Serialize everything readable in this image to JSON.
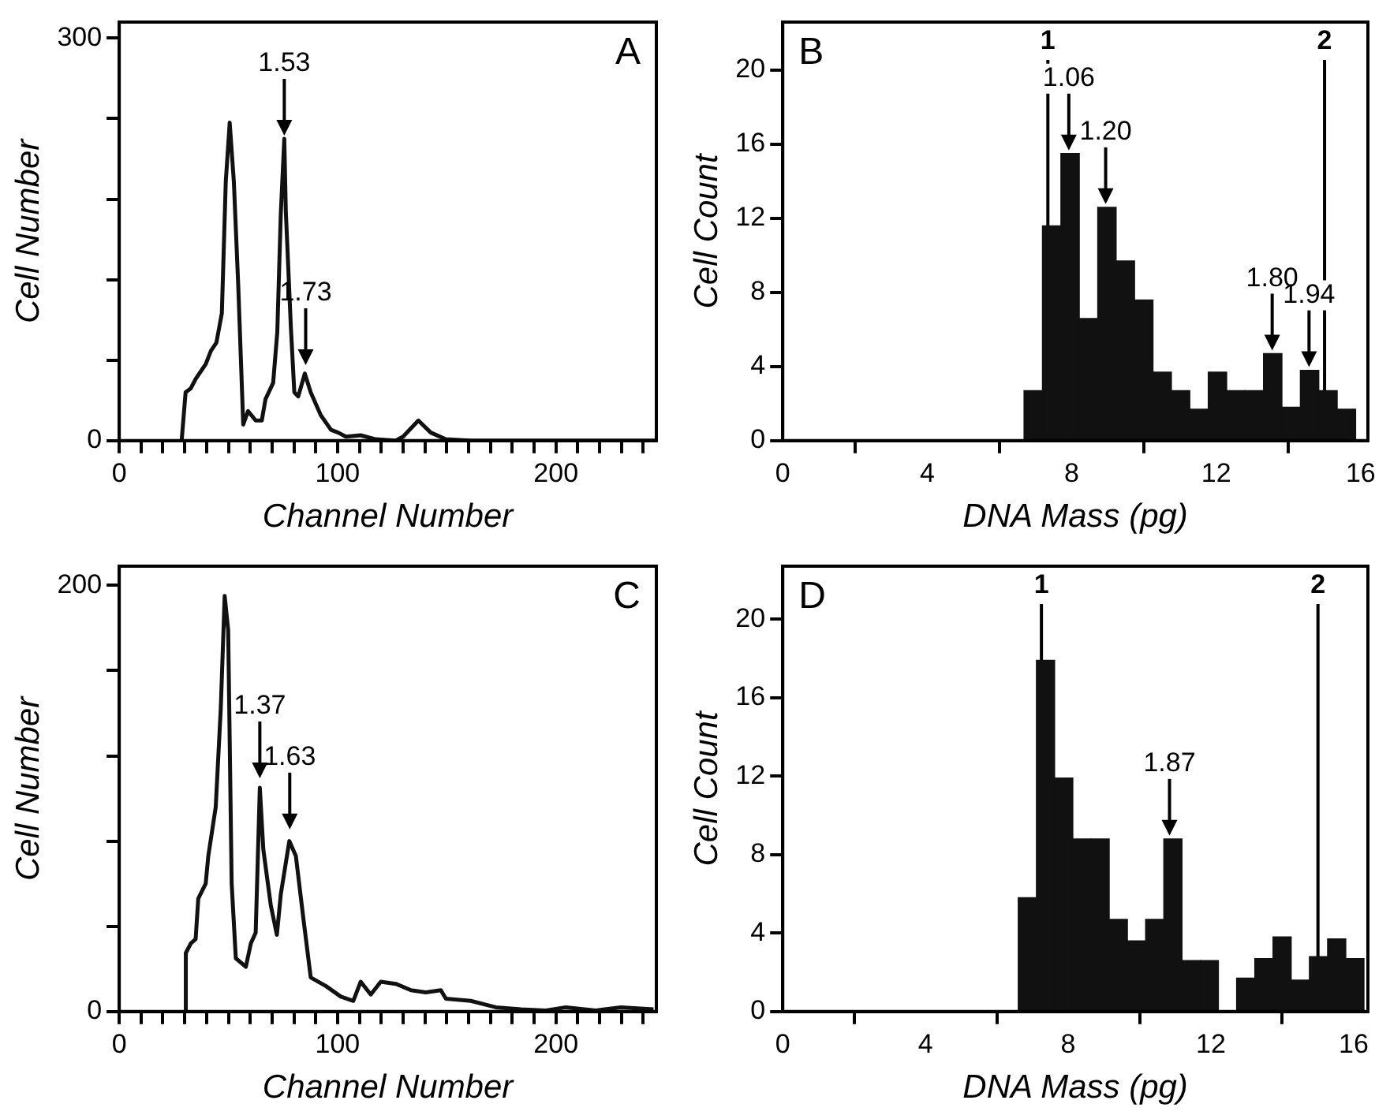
{
  "chart_data": [
    {
      "type": "line",
      "title": "A",
      "xlabel": "Channel Number",
      "ylabel": "Cell Number",
      "color": "#111111",
      "x": [
        28.6,
        30.4,
        32.8,
        35,
        39.6,
        42,
        44.5,
        47,
        48.8,
        50.6,
        52.5,
        54.5,
        56.8,
        59,
        62.5,
        65.3,
        67,
        70.5,
        72.4,
        74,
        75.6,
        76.3,
        78.6,
        80.2,
        82,
        85,
        87.7,
        92.3,
        97,
        100.3,
        103.8,
        110.6,
        117.5,
        126.7,
        130,
        137,
        142.7,
        149.6,
        161,
        200,
        246
      ],
      "values": [
        0,
        36,
        39,
        46,
        57,
        67,
        73,
        95,
        193,
        237,
        193,
        116,
        12,
        22,
        15,
        15,
        31,
        43,
        81,
        169,
        225,
        171,
        85,
        36,
        33,
        50,
        36,
        19,
        8,
        6,
        3,
        4,
        1,
        0,
        3,
        15,
        6,
        1,
        0,
        0,
        0
      ],
      "xlim": [
        0,
        246
      ],
      "ylim": [
        0,
        312
      ],
      "xticks": [
        0,
        {
          "value": 10,
          "label": null
        },
        {
          "value": 20,
          "label": null
        },
        {
          "value": 30,
          "label": null
        },
        {
          "value": 40,
          "label": null
        },
        {
          "value": 50,
          "label": null
        },
        {
          "value": 60,
          "label": null
        },
        {
          "value": 70,
          "label": null
        },
        {
          "value": 80,
          "label": null
        },
        {
          "value": 90,
          "label": null
        },
        100,
        {
          "value": 110,
          "label": null
        },
        {
          "value": 120,
          "label": null
        },
        {
          "value": 130,
          "label": null
        },
        {
          "value": 140,
          "label": null
        },
        {
          "value": 150,
          "label": null
        },
        {
          "value": 160,
          "label": null
        },
        {
          "value": 170,
          "label": null
        },
        {
          "value": 180,
          "label": null
        },
        {
          "value": 190,
          "label": null
        },
        200,
        {
          "value": 210,
          "label": null
        },
        {
          "value": 220,
          "label": null
        },
        {
          "value": 230,
          "label": null
        },
        {
          "value": 240,
          "label": null
        }
      ],
      "yticks": [
        0,
        {
          "value": 60,
          "label": null
        },
        {
          "value": 120,
          "label": null
        },
        {
          "value": 180,
          "label": null
        },
        {
          "value": 240,
          "label": null
        },
        300
      ],
      "annotations": [
        {
          "text": "1.53",
          "x": 75.6,
          "y": 225
        },
        {
          "text": "1.73",
          "x": 85.4,
          "y": 54
        }
      ]
    },
    {
      "type": "histogram",
      "title": "B",
      "xlabel": "DNA Mass (pg)",
      "ylabel": "Cell Count",
      "color": "#111111",
      "bins": [
        6.68,
        7.19,
        7.7,
        8.21,
        8.72,
        9.23,
        9.74,
        10.25,
        10.76,
        11.27,
        11.78,
        12.29,
        12.8,
        13.31,
        13.82,
        14.33,
        14.84,
        15.35,
        15.86
      ],
      "values": [
        2.7,
        11.6,
        15.5,
        6.6,
        12.6,
        9.7,
        7.6,
        3.7,
        2.7,
        1.7,
        3.7,
        2.7,
        2.7,
        4.7,
        1.8,
        3.8,
        2.7,
        1.7
      ],
      "xlim": [
        0,
        16.2
      ],
      "ylim": [
        0,
        22.6
      ],
      "xticks": [
        0,
        4,
        8,
        12,
        16
      ],
      "yticks": [
        0,
        4,
        8,
        12,
        16,
        20
      ],
      "ref_lines": [
        {
          "axis": "x",
          "value": 7.34
        },
        {
          "axis": "x",
          "value": 15.0
        }
      ],
      "annotations": [
        "1",
        "2",
        {
          "text": "1.06",
          "x": 7.92,
          "y": 15.5
        },
        {
          "text": "1.20",
          "x": 8.94,
          "y": 12.6
        },
        {
          "text": "1.80",
          "x": 13.55,
          "y": 4.7
        },
        {
          "text": "1.94",
          "x": 14.57,
          "y": 3.8
        }
      ]
    },
    {
      "type": "line",
      "title": "C",
      "xlabel": "Channel Number",
      "ylabel": "Cell Number",
      "color": "#111111",
      "x": [
        30,
        30.5,
        32.8,
        35,
        36.2,
        39.6,
        40.8,
        44.2,
        46.5,
        48.3,
        49.9,
        51.5,
        53.4,
        58,
        60.3,
        62.5,
        64.4,
        66,
        69.4,
        72.2,
        74,
        77.9,
        80.9,
        84.3,
        87.7,
        94.6,
        101.5,
        107.2,
        110.6,
        115.2,
        119.8,
        126.7,
        133.6,
        140.4,
        147.3,
        149.6,
        161,
        172.5,
        184,
        195.4,
        204.6,
        218.3,
        229.8,
        244.7
      ],
      "values": [
        0,
        27.5,
        32,
        34,
        53,
        60,
        73,
        96,
        142,
        195,
        179,
        60,
        25,
        21,
        32,
        37,
        105,
        76,
        50,
        36,
        55,
        80,
        73,
        44,
        16,
        12,
        7,
        5,
        14,
        8,
        14,
        13,
        10,
        9,
        10,
        6,
        5,
        2,
        1,
        0.5,
        2,
        0.5,
        2,
        1
      ],
      "xlim": [
        0,
        246
      ],
      "ylim": [
        0,
        209
      ],
      "xticks": [
        0,
        {
          "value": 10,
          "label": null
        },
        {
          "value": 20,
          "label": null
        },
        {
          "value": 30,
          "label": null
        },
        {
          "value": 40,
          "label": null
        },
        {
          "value": 50,
          "label": null
        },
        {
          "value": 60,
          "label": null
        },
        {
          "value": 70,
          "label": null
        },
        {
          "value": 80,
          "label": null
        },
        {
          "value": 90,
          "label": null
        },
        100,
        {
          "value": 110,
          "label": null
        },
        {
          "value": 120,
          "label": null
        },
        {
          "value": 130,
          "label": null
        },
        {
          "value": 140,
          "label": null
        },
        {
          "value": 150,
          "label": null
        },
        {
          "value": 160,
          "label": null
        },
        {
          "value": 170,
          "label": null
        },
        {
          "value": 180,
          "label": null
        },
        {
          "value": 190,
          "label": null
        },
        200,
        {
          "value": 210,
          "label": null
        },
        {
          "value": 220,
          "label": null
        },
        {
          "value": 230,
          "label": null
        },
        {
          "value": 240,
          "label": null
        }
      ],
      "yticks": [
        0,
        {
          "value": 40,
          "label": null
        },
        {
          "value": 80,
          "label": null
        },
        {
          "value": 120,
          "label": null
        },
        {
          "value": 160,
          "label": null
        },
        200
      ],
      "annotations": [
        {
          "text": "1.37",
          "x": 64.4,
          "y": 108
        },
        {
          "text": "1.63",
          "x": 78.1,
          "y": 84
        }
      ]
    },
    {
      "type": "histogram",
      "title": "D",
      "xlabel": "DNA Mass (pg)",
      "ylabel": "Cell Count",
      "color": "#111111",
      "bins": [
        6.6,
        7.11,
        7.62,
        8.13,
        8.64,
        9.15,
        9.66,
        10.17,
        10.68,
        11.19,
        11.7,
        12.21,
        12.72,
        13.23,
        13.74,
        14.25,
        14.76,
        15.27,
        15.78,
        16.29
      ],
      "values": [
        5.8,
        17.9,
        11.9,
        8.8,
        8.8,
        4.7,
        3.6,
        4.7,
        8.8,
        2.6,
        2.6,
        0,
        1.7,
        2.7,
        3.8,
        1.6,
        2.8,
        3.7,
        2.7
      ],
      "xlim": [
        0,
        16.4
      ],
      "ylim": [
        0,
        22.7
      ],
      "xticks": [
        0,
        4,
        8,
        12,
        16
      ],
      "yticks": [
        0,
        4,
        8,
        12,
        16,
        20
      ],
      "ref_lines": [
        {
          "axis": "x",
          "value": 7.25
        },
        {
          "axis": "x",
          "value": 15.0
        }
      ],
      "annotations": [
        "1",
        "2",
        {
          "text": "1.87",
          "x": 10.84,
          "y": 8.8
        }
      ]
    }
  ]
}
